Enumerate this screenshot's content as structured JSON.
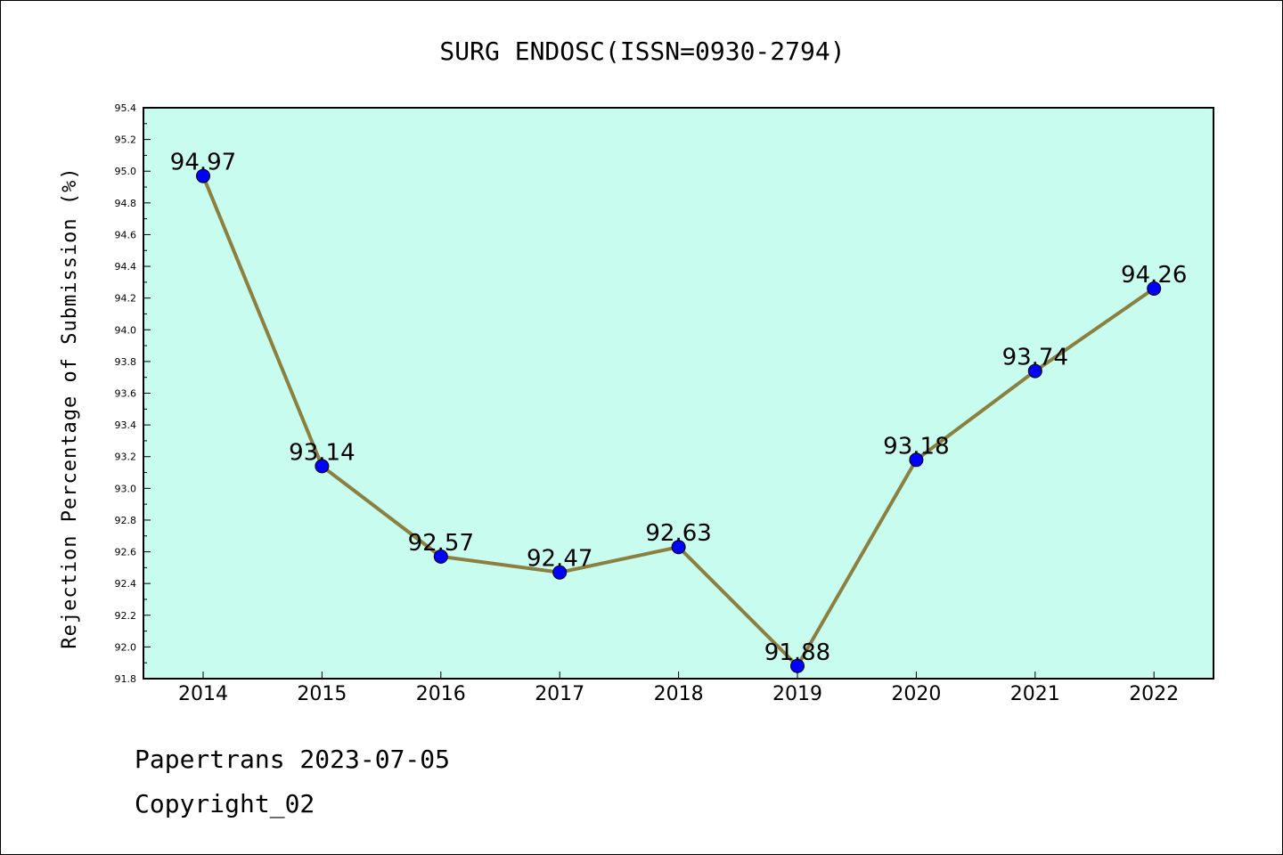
{
  "chart_data": {
    "type": "line",
    "title": "SURG ENDOSC(ISSN=0930-2794)",
    "xlabel": "",
    "ylabel": "Rejection Percentage of Submission (%)",
    "categories": [
      "2014",
      "2015",
      "2016",
      "2017",
      "2018",
      "2019",
      "2020",
      "2021",
      "2022"
    ],
    "series": [
      {
        "values": [
          94.97,
          93.14,
          92.57,
          92.47,
          92.63,
          91.88,
          93.18,
          93.74,
          94.26
        ],
        "labels": [
          "94.97",
          "93.14",
          "92.57",
          "92.47",
          "92.63",
          "91.88",
          "93.18",
          "93.74",
          "94.26"
        ],
        "line_color": "#8b8040",
        "marker_color": "#0000ff"
      }
    ],
    "ylim": [
      91.8,
      95.4
    ],
    "yticks": [
      "91.8",
      "92.0",
      "92.2",
      "92.4",
      "92.6",
      "92.8",
      "93.0",
      "93.2",
      "93.4",
      "93.6",
      "93.8",
      "94.0",
      "94.2",
      "94.4",
      "94.6",
      "94.8",
      "95.0",
      "95.2",
      "95.4"
    ],
    "plot_background": "#c8fcee",
    "grid": false,
    "legend": "none"
  },
  "footer": {
    "line1": "Papertrans 2023-07-05",
    "line2": "Copyright_02"
  }
}
